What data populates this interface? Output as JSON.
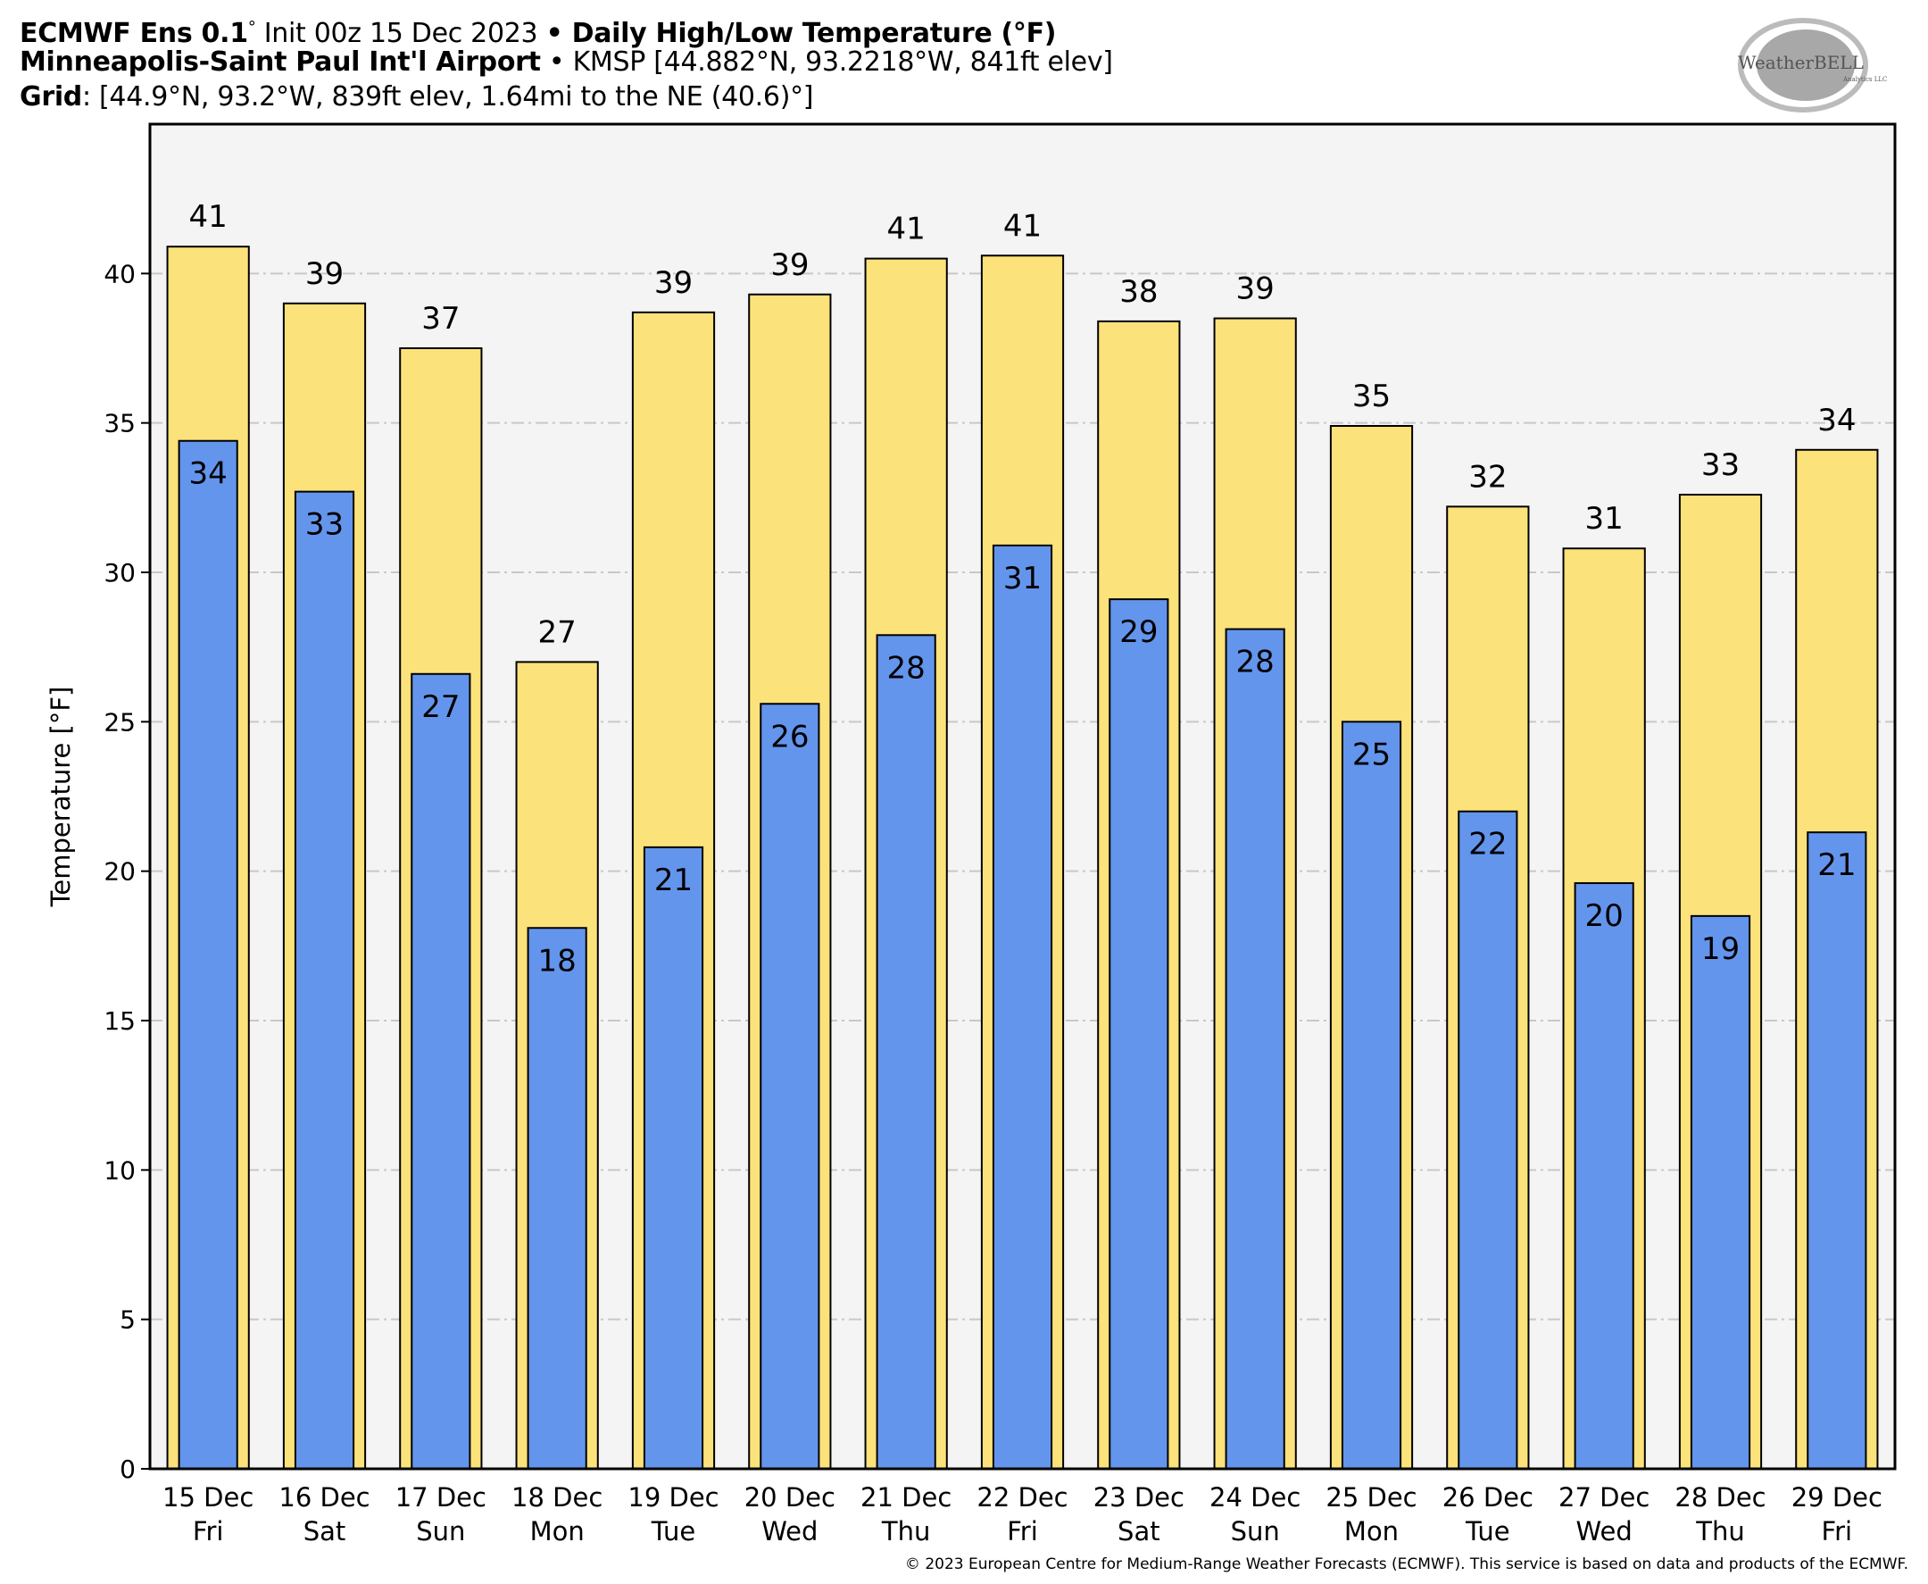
{
  "header": {
    "line1": {
      "model": "ECMWF Ens 0.1",
      "deg": "°",
      "init": " Init 00z 15 Dec 2023 ",
      "bullet": "•",
      "product": " Daily High/Low Temperature (°F)"
    },
    "line2": {
      "station": "Minneapolis-Saint Paul Int'l Airport",
      "sep": " • ",
      "details": "KMSP [44.882°N, 93.2218°W, 841ft elev]"
    },
    "line3": {
      "label": "Grid",
      "details": ": [44.9°N, 93.2°W, 839ft elev, 1.64mi to the NE (40.6)°]"
    }
  },
  "logo": {
    "text": "WeatherBELL",
    "subtext": "Analytics LLC"
  },
  "footer": "© 2023 European Centre for Medium-Range Weather Forecasts (ECMWF). This service is based on data and products of the ECMWF.",
  "colors": {
    "high": "#fce27a",
    "low": "#6495ed",
    "plot_bg": "#f4f4f4",
    "grid": "#c8c8c8"
  },
  "chart_data": {
    "type": "bar",
    "title": "Daily High/Low Temperature (°F)",
    "xlabel": "",
    "ylabel": "Temperature [°F]",
    "ylim": [
      0,
      45
    ],
    "yticks": [
      0,
      5,
      10,
      15,
      20,
      25,
      30,
      35,
      40
    ],
    "grid": true,
    "categories": [
      {
        "date": "15 Dec",
        "day": "Fri"
      },
      {
        "date": "16 Dec",
        "day": "Sat"
      },
      {
        "date": "17 Dec",
        "day": "Sun"
      },
      {
        "date": "18 Dec",
        "day": "Mon"
      },
      {
        "date": "19 Dec",
        "day": "Tue"
      },
      {
        "date": "20 Dec",
        "day": "Wed"
      },
      {
        "date": "21 Dec",
        "day": "Thu"
      },
      {
        "date": "22 Dec",
        "day": "Fri"
      },
      {
        "date": "23 Dec",
        "day": "Sat"
      },
      {
        "date": "24 Dec",
        "day": "Sun"
      },
      {
        "date": "25 Dec",
        "day": "Mon"
      },
      {
        "date": "26 Dec",
        "day": "Tue"
      },
      {
        "date": "27 Dec",
        "day": "Wed"
      },
      {
        "date": "28 Dec",
        "day": "Thu"
      },
      {
        "date": "29 Dec",
        "day": "Fri"
      }
    ],
    "series": [
      {
        "name": "High",
        "values": [
          40.9,
          39.0,
          37.5,
          27.0,
          38.7,
          39.3,
          40.5,
          40.6,
          38.4,
          38.5,
          34.9,
          32.2,
          30.8,
          32.6,
          34.1
        ],
        "labels": [
          "41",
          "39",
          "37",
          "27",
          "39",
          "39",
          "41",
          "41",
          "38",
          "39",
          "35",
          "32",
          "31",
          "33",
          "34"
        ]
      },
      {
        "name": "Low",
        "values": [
          34.4,
          32.7,
          26.6,
          18.1,
          20.8,
          25.6,
          27.9,
          30.9,
          29.1,
          28.1,
          25.0,
          22.0,
          19.6,
          18.5,
          21.3
        ],
        "labels": [
          "34",
          "33",
          "27",
          "18",
          "21",
          "26",
          "28",
          "31",
          "29",
          "28",
          "25",
          "22",
          "20",
          "19",
          "21"
        ]
      }
    ]
  }
}
